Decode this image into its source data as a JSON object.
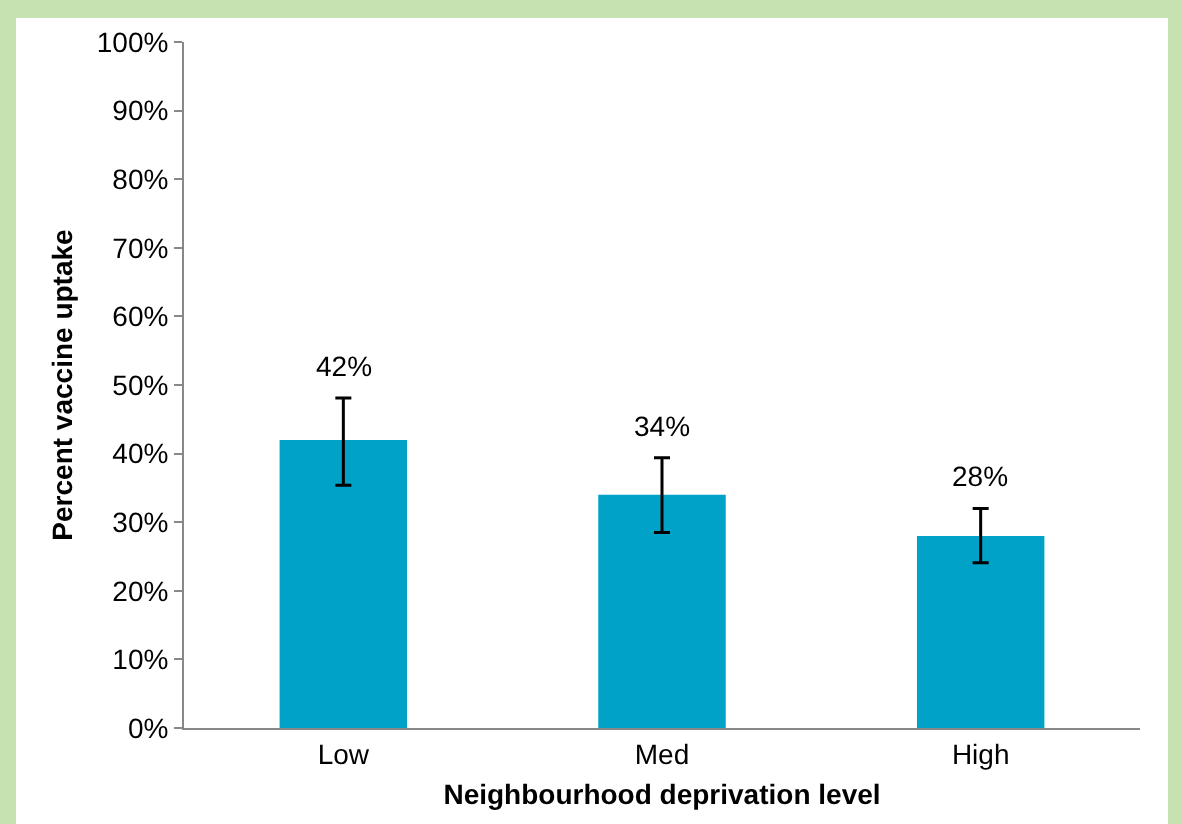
{
  "chart_data": {
    "type": "bar",
    "xlabel": "Neighbourhood deprivation level",
    "ylabel": "Percent vaccine uptake",
    "categories": [
      "Low",
      "Med",
      "High"
    ],
    "values": [
      42,
      34,
      28
    ],
    "color": "#00a2c7",
    "errors": [
      [
        35.4,
        48.1
      ],
      [
        28.5,
        39.4
      ],
      [
        24.1,
        32
      ]
    ],
    "value_labels": [
      "42%",
      "34%",
      "28%"
    ],
    "ylim": [
      0,
      100
    ],
    "yticks": [
      {
        "value": 0,
        "label": "0%"
      },
      {
        "value": 10,
        "label": "10%"
      },
      {
        "value": 20,
        "label": "20%"
      },
      {
        "value": 30,
        "label": "30%"
      },
      {
        "value": 40,
        "label": "40%"
      },
      {
        "value": 50,
        "label": "50%"
      },
      {
        "value": 60,
        "label": "60%"
      },
      {
        "value": 70,
        "label": "70%"
      },
      {
        "value": 80,
        "label": "80%"
      },
      {
        "value": 90,
        "label": "90%"
      },
      {
        "value": 100,
        "label": "100%"
      }
    ]
  }
}
